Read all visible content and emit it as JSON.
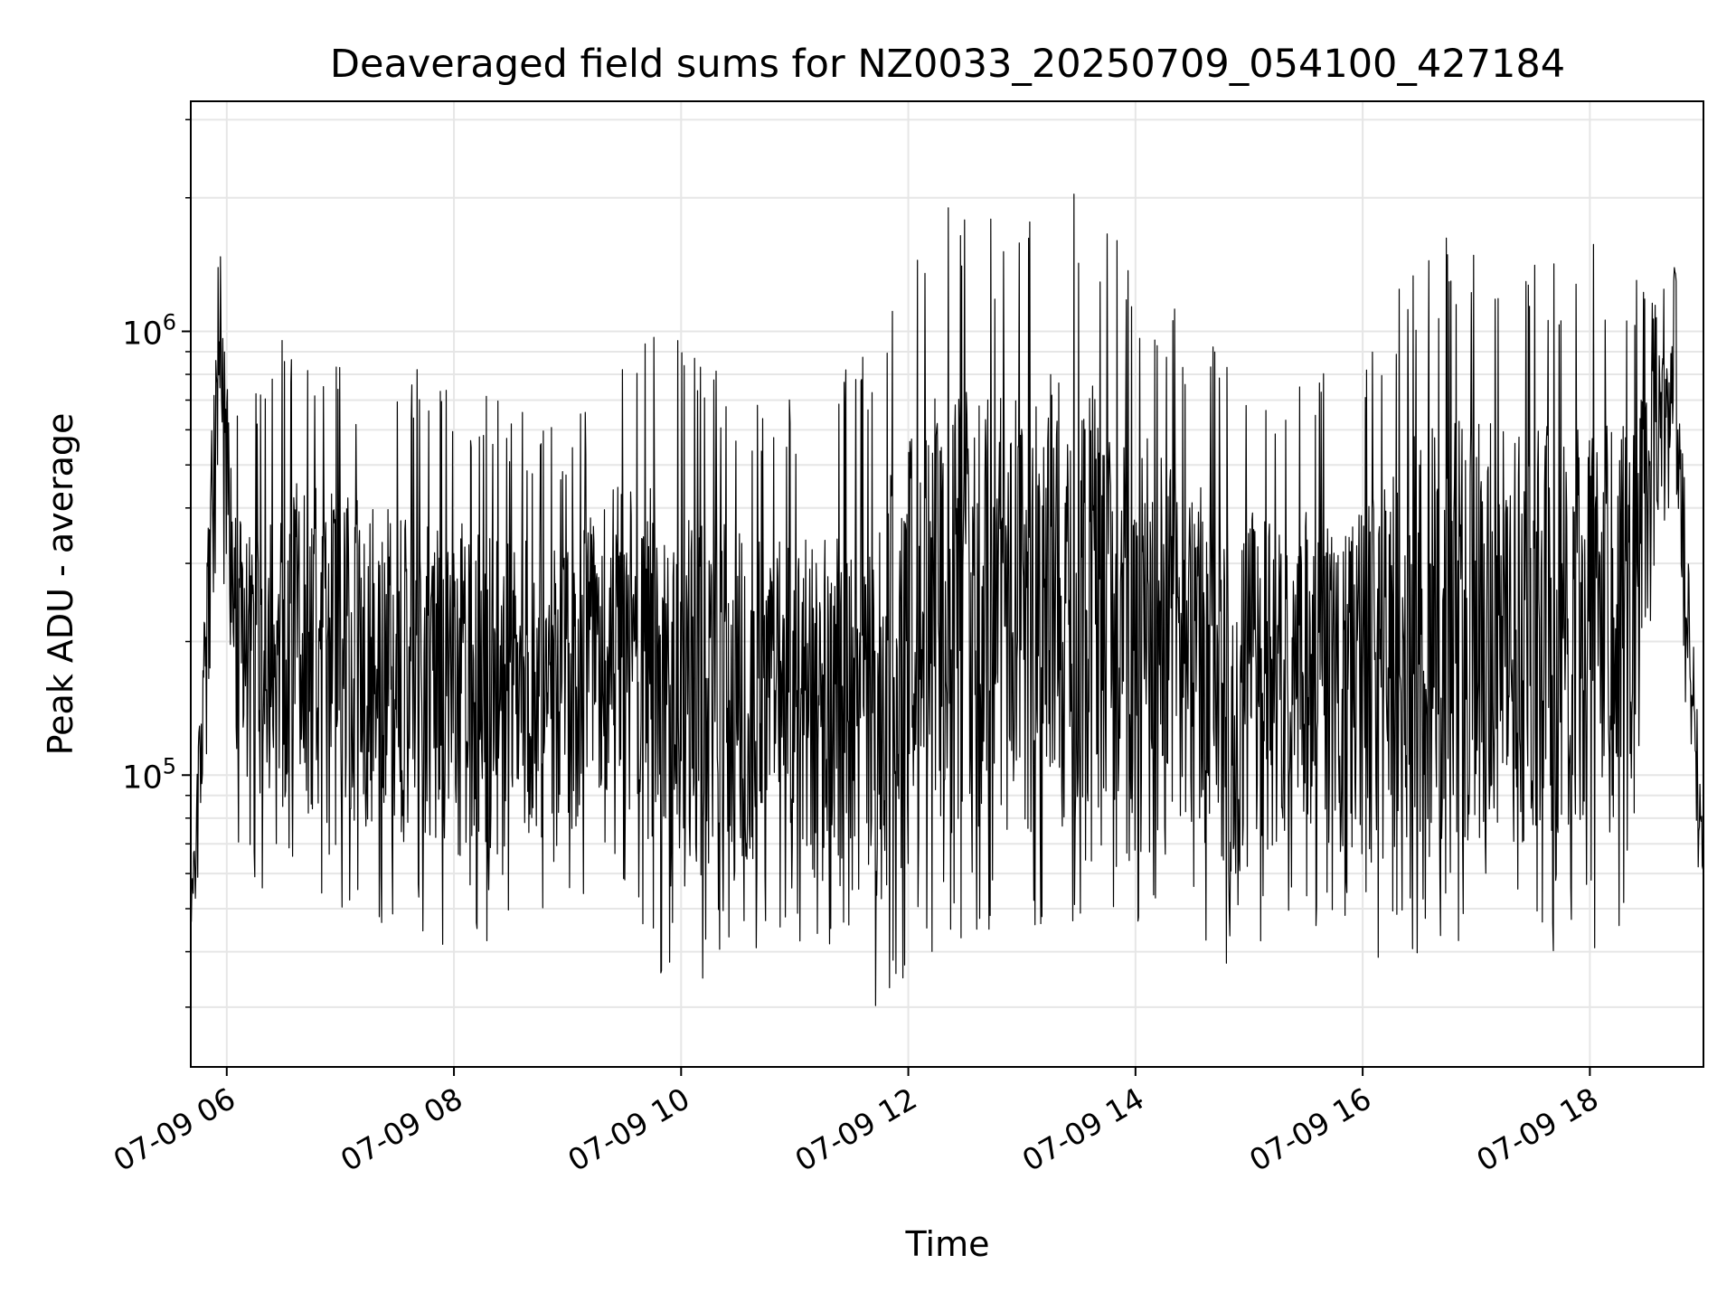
{
  "chart_data": {
    "type": "line",
    "title": "Deaveraged field sums for NZ0033_20250709_054100_427184",
    "xlabel": "Time",
    "ylabel": "Peak ADU - average",
    "yscale": "log",
    "grid": true,
    "x_range": [
      "07-09 05:41",
      "07-09 19:00"
    ],
    "ylim": [
      22000,
      3300000
    ],
    "x_ticks": [
      {
        "hour": 6,
        "label": "07-09 06"
      },
      {
        "hour": 8,
        "label": "07-09 08"
      },
      {
        "hour": 10,
        "label": "07-09 10"
      },
      {
        "hour": 12,
        "label": "07-09 12"
      },
      {
        "hour": 14,
        "label": "07-09 14"
      },
      {
        "hour": 16,
        "label": "07-09 16"
      },
      {
        "hour": 18,
        "label": "07-09 18"
      }
    ],
    "y_ticks": [
      {
        "value": 100000,
        "base": "10",
        "exp": "5"
      },
      {
        "value": 1000000,
        "base": "10",
        "exp": "6"
      }
    ],
    "line_color": "#000000",
    "series": [
      {
        "name": "",
        "envelope": [
          {
            "time": "07-09 05:41",
            "low": 38000,
            "high": 60000
          },
          {
            "time": "07-09 05:50",
            "low": 110000,
            "high": 600000
          },
          {
            "time": "07-09 05:55",
            "low": 250000,
            "high": 1800000
          },
          {
            "time": "07-09 06:00",
            "low": 220000,
            "high": 1400000
          },
          {
            "time": "07-09 06:05",
            "low": 56000,
            "high": 700000
          },
          {
            "time": "07-09 06:30",
            "low": 50000,
            "high": 1000000
          },
          {
            "time": "07-09 07:00",
            "low": 50000,
            "high": 880000
          },
          {
            "time": "07-09 08:00",
            "low": 40000,
            "high": 800000
          },
          {
            "time": "07-09 09:00",
            "low": 48000,
            "high": 600000
          },
          {
            "time": "07-09 09:25",
            "low": 60000,
            "high": 900000
          },
          {
            "time": "07-09 09:50",
            "low": 33000,
            "high": 1050000
          },
          {
            "time": "07-09 10:30",
            "low": 36000,
            "high": 760000
          },
          {
            "time": "07-09 11:00",
            "low": 40000,
            "high": 700000
          },
          {
            "time": "07-09 11:40",
            "low": 28000,
            "high": 900000
          },
          {
            "time": "07-09 12:10",
            "low": 40000,
            "high": 2200000
          },
          {
            "time": "07-09 12:45",
            "low": 40000,
            "high": 1800000
          },
          {
            "time": "07-09 13:20",
            "low": 40000,
            "high": 2300000
          },
          {
            "time": "07-09 13:40",
            "low": 48000,
            "high": 1900000
          },
          {
            "time": "07-09 14:30",
            "low": 44000,
            "high": 1000000
          },
          {
            "time": "07-09 14:50",
            "low": 35000,
            "high": 900000
          },
          {
            "time": "07-09 15:30",
            "low": 46000,
            "high": 800000
          },
          {
            "time": "07-09 16:00",
            "low": 39000,
            "high": 900000
          },
          {
            "time": "07-09 16:30",
            "low": 36000,
            "high": 1600000
          },
          {
            "time": "07-09 16:50",
            "low": 40000,
            "high": 1700000
          },
          {
            "time": "07-09 17:30",
            "low": 40000,
            "high": 1500000
          },
          {
            "time": "07-09 18:00",
            "low": 40000,
            "high": 1600000
          },
          {
            "time": "07-09 18:20",
            "low": 45000,
            "high": 1500000
          },
          {
            "time": "07-09 18:35",
            "low": 300000,
            "high": 1200000
          },
          {
            "time": "07-09 18:45",
            "low": 400000,
            "high": 1500000
          },
          {
            "time": "07-09 18:52",
            "low": 110000,
            "high": 300000
          },
          {
            "time": "07-09 19:00",
            "low": 45000,
            "high": 90000
          }
        ]
      }
    ]
  }
}
